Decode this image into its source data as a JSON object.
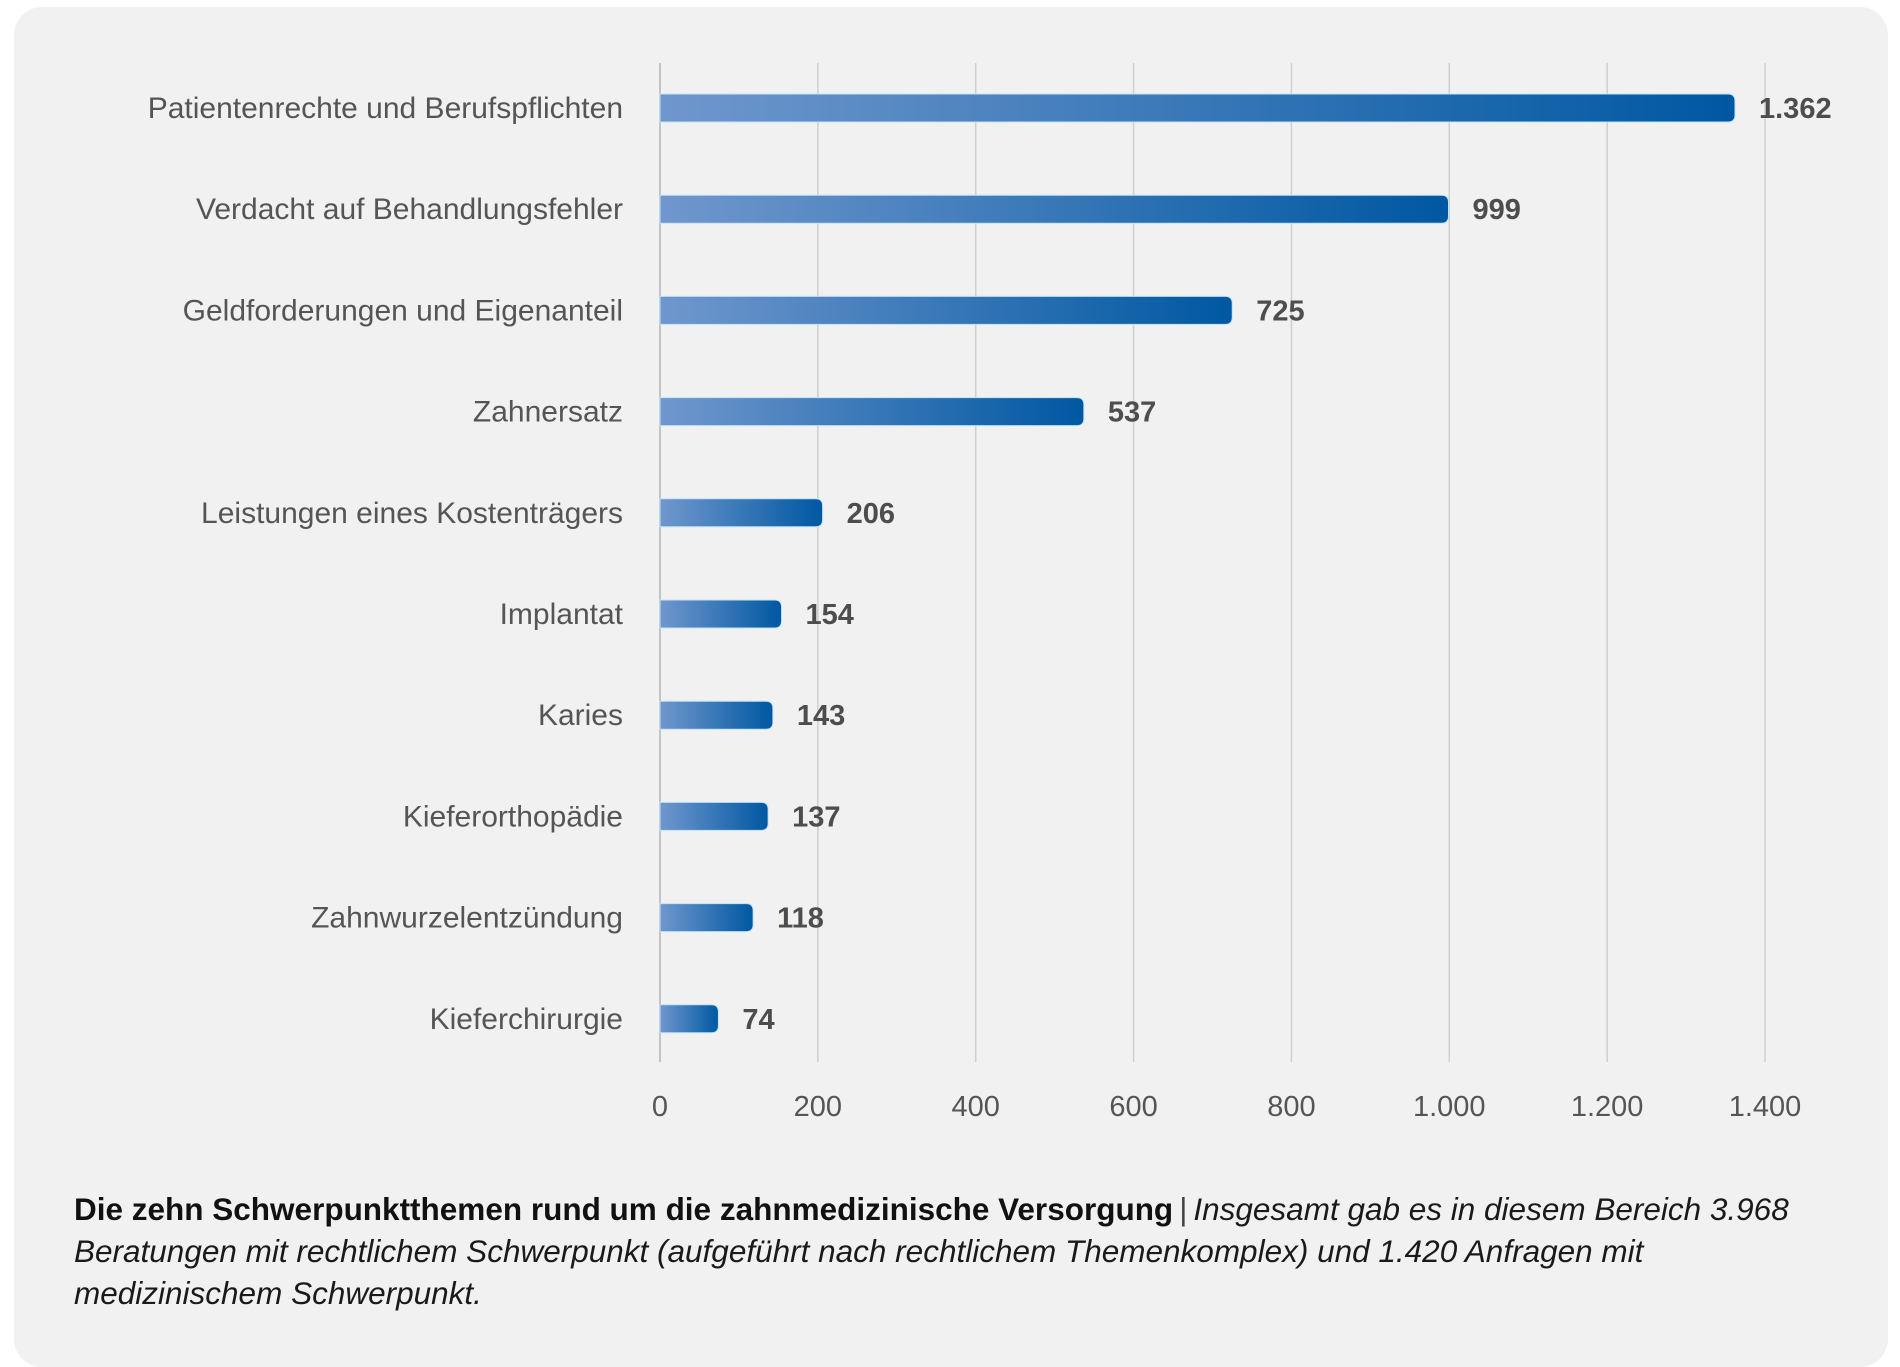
{
  "colors": {
    "background": "#ffffff",
    "card": "#f1f1f1",
    "bar_gradient_start": "#7097cd",
    "bar_gradient_end": "#0058a2",
    "gridline": "#cfcfcf",
    "label_text": "#555555",
    "value_text": "#4d4d4d"
  },
  "caption": {
    "title": "Die zehn Schwerpunktthemen rund um die zahnmedizinische Versorgung",
    "separator": "|",
    "description": "Insgesamt gab es in diesem Bereich 3.968 Beratungen mit rechtlichem Schwerpunkt (aufgeführt nach rechtlichem Themenkomplex) und 1.420 Anfragen mit medizinischem Schwerpunkt."
  },
  "chart_data": {
    "type": "bar",
    "orientation": "horizontal",
    "title": "Die zehn Schwerpunktthemen rund um die zahnmedizinische Versorgung",
    "xlabel": "",
    "ylabel": "",
    "categories": [
      "Patientenrechte und Berufspflichten",
      "Verdacht auf Behandlungsfehler",
      "Geldforderungen und Eigenanteil",
      "Zahnersatz",
      "Leistungen eines Kostenträgers",
      "Implantat",
      "Karies",
      "Kieferorthopädie",
      "Zahnwurzelentzündung",
      "Kieferchirurgie"
    ],
    "values": [
      1362,
      999,
      725,
      537,
      206,
      154,
      143,
      137,
      118,
      74
    ],
    "value_labels": [
      "1.362",
      "999",
      "725",
      "537",
      "206",
      "154",
      "143",
      "137",
      "118",
      "74"
    ],
    "xlim": [
      0,
      1400
    ],
    "xticks": [
      0,
      200,
      400,
      600,
      800,
      1000,
      1200,
      1400
    ],
    "xtick_labels": [
      "0",
      "200",
      "400",
      "600",
      "800",
      "1.000",
      "1.200",
      "1.400"
    ],
    "grid": "vertical",
    "legend": "none"
  }
}
